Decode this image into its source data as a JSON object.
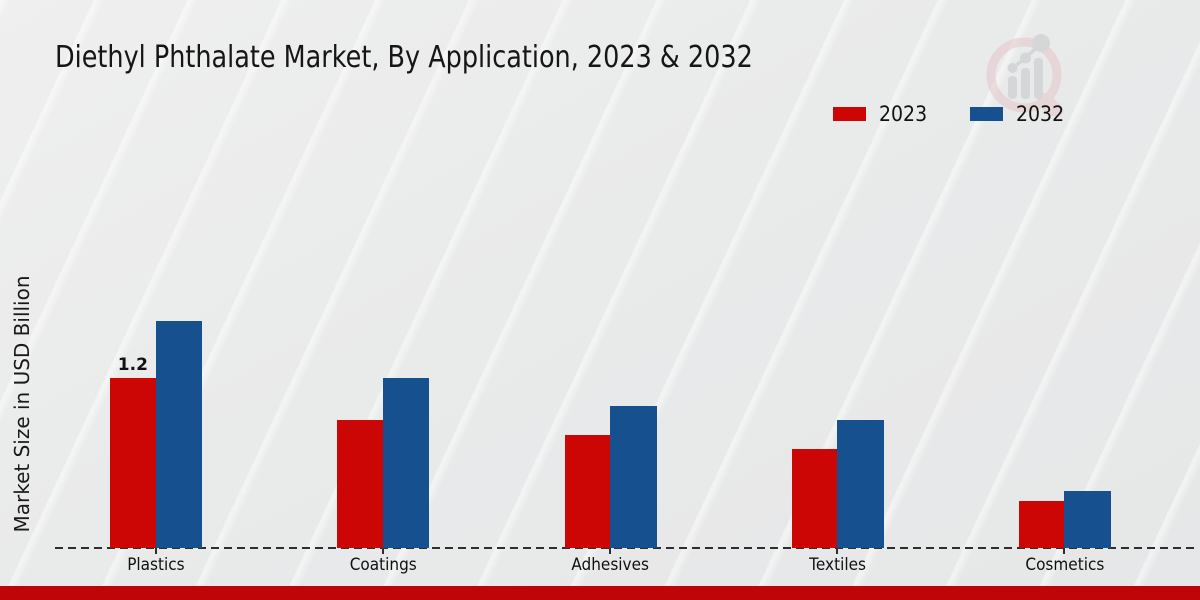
{
  "page": {
    "title": "Diethyl Phthalate Market, By Application, 2023 & 2032"
  },
  "chart_data": {
    "type": "bar",
    "title": "Diethyl Phthalate Market, By Application, 2023 & 2032",
    "xlabel": "",
    "ylabel": "Market Size in USD Billion",
    "categories": [
      "Plastics",
      "Coatings",
      "Adhesives",
      "Textiles",
      "Cosmetics"
    ],
    "series": [
      {
        "name": "2023",
        "color": "#cc0605",
        "values": [
          1.2,
          0.9,
          0.8,
          0.7,
          0.33
        ]
      },
      {
        "name": "2032",
        "color": "#17508f",
        "values": [
          1.6,
          1.2,
          1.0,
          0.9,
          0.4
        ]
      }
    ],
    "annotations": [
      {
        "series_index": 0,
        "category_index": 0,
        "text": "1.2"
      }
    ],
    "legend_position": "top-right",
    "grid": false,
    "baseline_style": "dashed",
    "ylim": [
      0,
      1.7
    ]
  },
  "watermark": {
    "name": "market-research-magnifier-logo"
  },
  "colors": {
    "background": "#e9eaeb",
    "axis": "#2e2e2e",
    "text": "#111111",
    "bottom_band": "#c00508",
    "watermark_ring": "#e3bfc4",
    "watermark_gray": "#d2d3d6"
  }
}
